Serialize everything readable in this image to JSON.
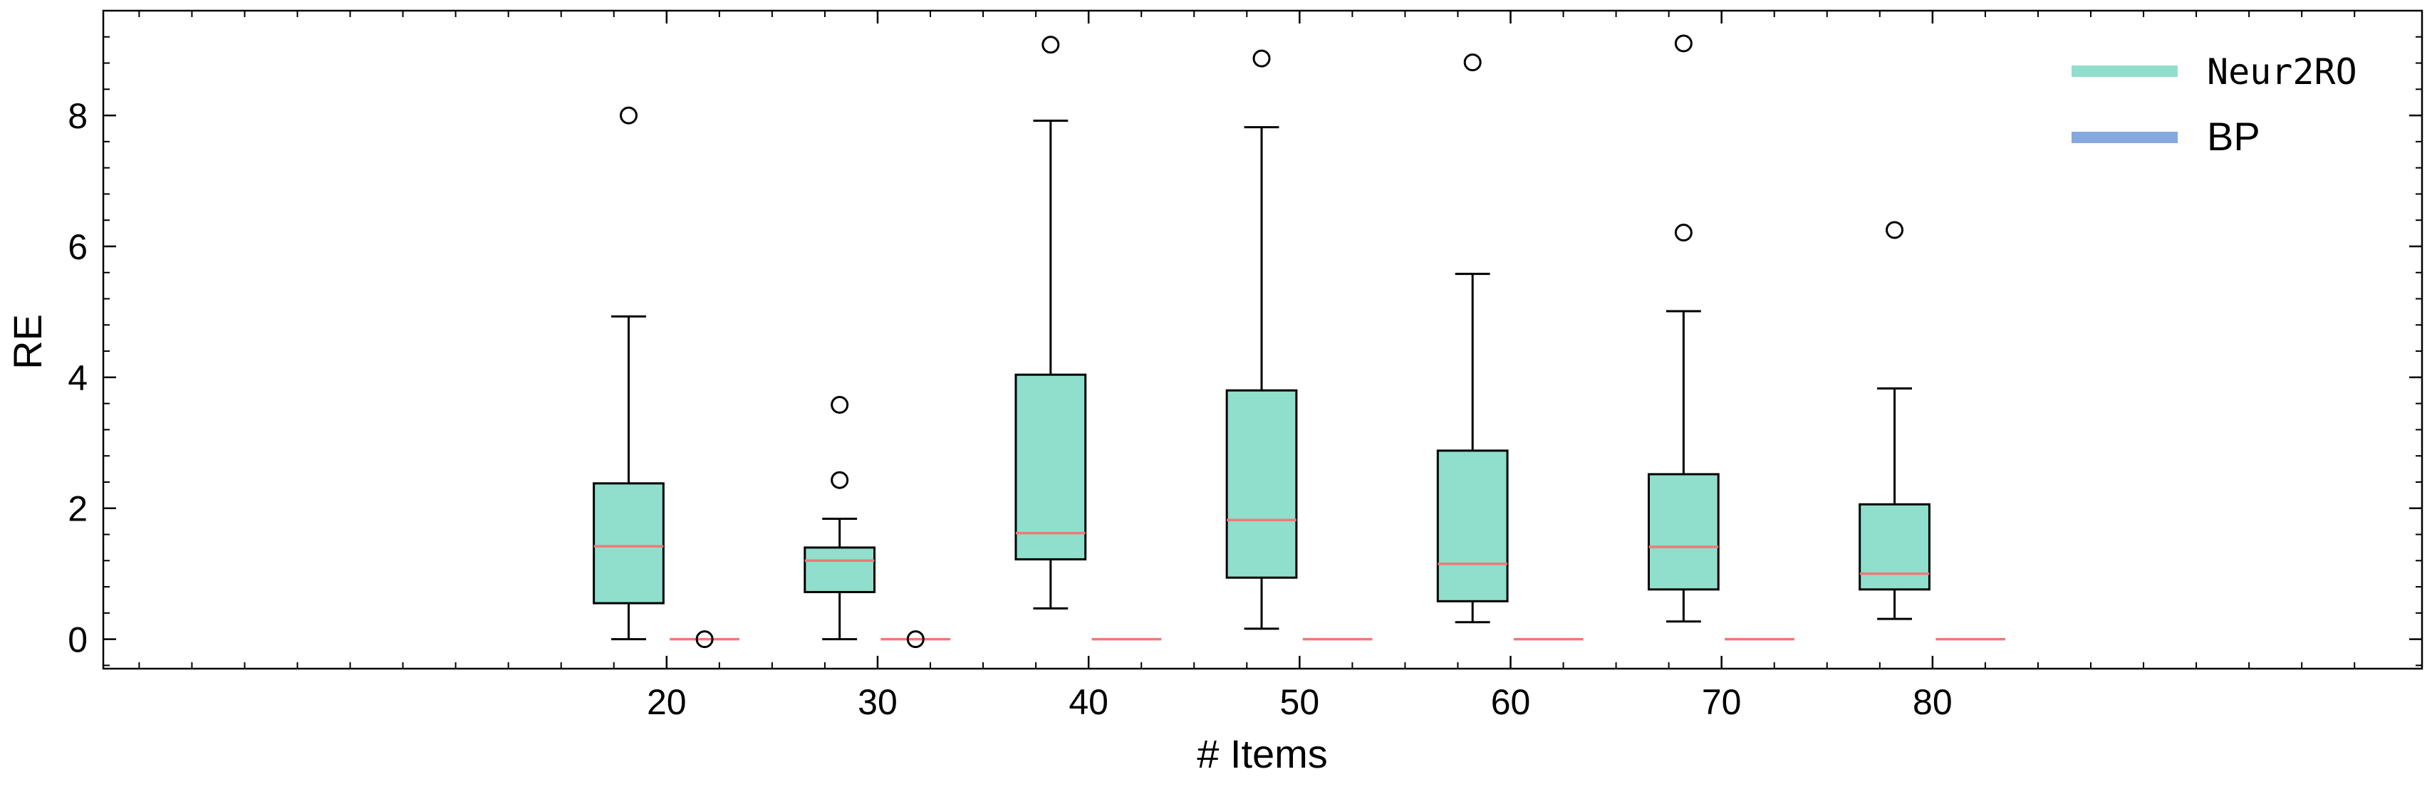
{
  "chart_data": {
    "type": "box",
    "xlabel": "# Items",
    "ylabel": "RE",
    "categories": [
      "20",
      "30",
      "40",
      "50",
      "60",
      "70",
      "80"
    ],
    "ylim": [
      -0.45,
      9.6
    ],
    "yticks": [
      0,
      2,
      4,
      6,
      8
    ],
    "grid": false,
    "legend_position": "top-right",
    "series": [
      {
        "name": "Neur2RO",
        "legend_style": "monospace",
        "color": "#8fdfcc",
        "median_color": "#f07878",
        "boxes": [
          {
            "category": "20",
            "whisker_low": 0.0,
            "q1": 0.55,
            "median": 1.42,
            "q3": 2.38,
            "whisker_high": 4.93,
            "outliers": [
              8.0
            ]
          },
          {
            "category": "30",
            "whisker_low": 0.0,
            "q1": 0.72,
            "median": 1.2,
            "q3": 1.4,
            "whisker_high": 1.84,
            "outliers": [
              2.43,
              3.58
            ]
          },
          {
            "category": "40",
            "whisker_low": 0.47,
            "q1": 1.22,
            "median": 1.62,
            "q3": 4.04,
            "whisker_high": 7.92,
            "outliers": [
              9.08
            ]
          },
          {
            "category": "50",
            "whisker_low": 0.16,
            "q1": 0.94,
            "median": 1.82,
            "q3": 3.8,
            "whisker_high": 7.82,
            "outliers": [
              8.87
            ]
          },
          {
            "category": "60",
            "whisker_low": 0.26,
            "q1": 0.58,
            "median": 1.15,
            "q3": 2.88,
            "whisker_high": 5.58,
            "outliers": [
              8.81
            ]
          },
          {
            "category": "70",
            "whisker_low": 0.27,
            "q1": 0.76,
            "median": 1.41,
            "q3": 2.52,
            "whisker_high": 5.01,
            "outliers": [
              6.21,
              9.1
            ]
          },
          {
            "category": "80",
            "whisker_low": 0.31,
            "q1": 0.76,
            "median": 1.0,
            "q3": 2.06,
            "whisker_high": 3.83,
            "outliers": [
              6.25
            ]
          }
        ]
      },
      {
        "name": "BP",
        "legend_style": "sans",
        "color": "#86a8e0",
        "median_color": "#f07878",
        "boxes": [
          {
            "category": "20",
            "whisker_low": 0.0,
            "q1": 0.0,
            "median": 0.0,
            "q3": 0.0,
            "whisker_high": 0.0,
            "outliers": [
              0.0
            ]
          },
          {
            "category": "30",
            "whisker_low": 0.0,
            "q1": 0.0,
            "median": 0.0,
            "q3": 0.0,
            "whisker_high": 0.0,
            "outliers": [
              0.0
            ]
          },
          {
            "category": "40",
            "whisker_low": 0.0,
            "q1": 0.0,
            "median": 0.0,
            "q3": 0.0,
            "whisker_high": 0.0,
            "outliers": []
          },
          {
            "category": "50",
            "whisker_low": 0.0,
            "q1": 0.0,
            "median": 0.0,
            "q3": 0.0,
            "whisker_high": 0.0,
            "outliers": []
          },
          {
            "category": "60",
            "whisker_low": 0.0,
            "q1": 0.0,
            "median": 0.0,
            "q3": 0.0,
            "whisker_high": 0.0,
            "outliers": []
          },
          {
            "category": "70",
            "whisker_low": 0.0,
            "q1": 0.0,
            "median": 0.0,
            "q3": 0.0,
            "whisker_high": 0.0,
            "outliers": []
          },
          {
            "category": "80",
            "whisker_low": 0.0,
            "q1": 0.0,
            "median": 0.0,
            "q3": 0.0,
            "whisker_high": 0.0,
            "outliers": []
          }
        ]
      }
    ]
  }
}
